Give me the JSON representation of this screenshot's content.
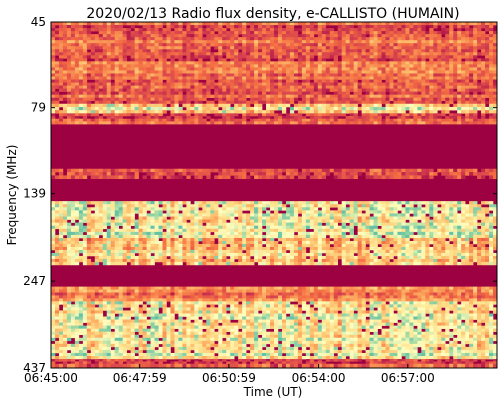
{
  "chart_data": {
    "type": "heatmap",
    "title": "2020/02/13  Radio flux density, e-CALLISTO (HUMAIN)",
    "xlabel": "Time (UT)",
    "ylabel": "Frequency (MHz)",
    "x_ticks": [
      "06:45:00",
      "06:47:59",
      "06:50:59",
      "06:54:00",
      "06:57:00"
    ],
    "x_tick_seconds": [
      0,
      179,
      359,
      540,
      720
    ],
    "x_range_seconds": [
      0,
      900
    ],
    "y_ticks": [
      "45",
      "79",
      "139",
      "247",
      "437"
    ],
    "y_tick_values": [
      45,
      79,
      139,
      247,
      437
    ],
    "y_scale": "log",
    "y_direction": "increasing-downward",
    "y_range": [
      45,
      437
    ],
    "colormap": "Spectral_r",
    "colors": {
      "low": "#9e0142",
      "mid": "#f46d43",
      "high": "#fee08b",
      "top": "#abdda4"
    },
    "frequency_bands": [
      {
        "from": 45,
        "to": 77,
        "intensity": 0.22
      },
      {
        "from": 77,
        "to": 82,
        "intensity": 0.62
      },
      {
        "from": 82,
        "to": 88,
        "intensity": 0.18
      },
      {
        "from": 88,
        "to": 118,
        "intensity": 0.0
      },
      {
        "from": 118,
        "to": 126,
        "intensity": 0.2
      },
      {
        "from": 126,
        "to": 146,
        "intensity": 0.0
      },
      {
        "from": 146,
        "to": 186,
        "intensity": 0.72
      },
      {
        "from": 186,
        "to": 222,
        "intensity": 0.58
      },
      {
        "from": 222,
        "to": 256,
        "intensity": 0.0
      },
      {
        "from": 256,
        "to": 282,
        "intensity": 0.32
      },
      {
        "from": 282,
        "to": 412,
        "intensity": 0.7
      },
      {
        "from": 412,
        "to": 425,
        "intensity": 0.04
      },
      {
        "from": 425,
        "to": 437,
        "intensity": 0.35
      }
    ]
  }
}
